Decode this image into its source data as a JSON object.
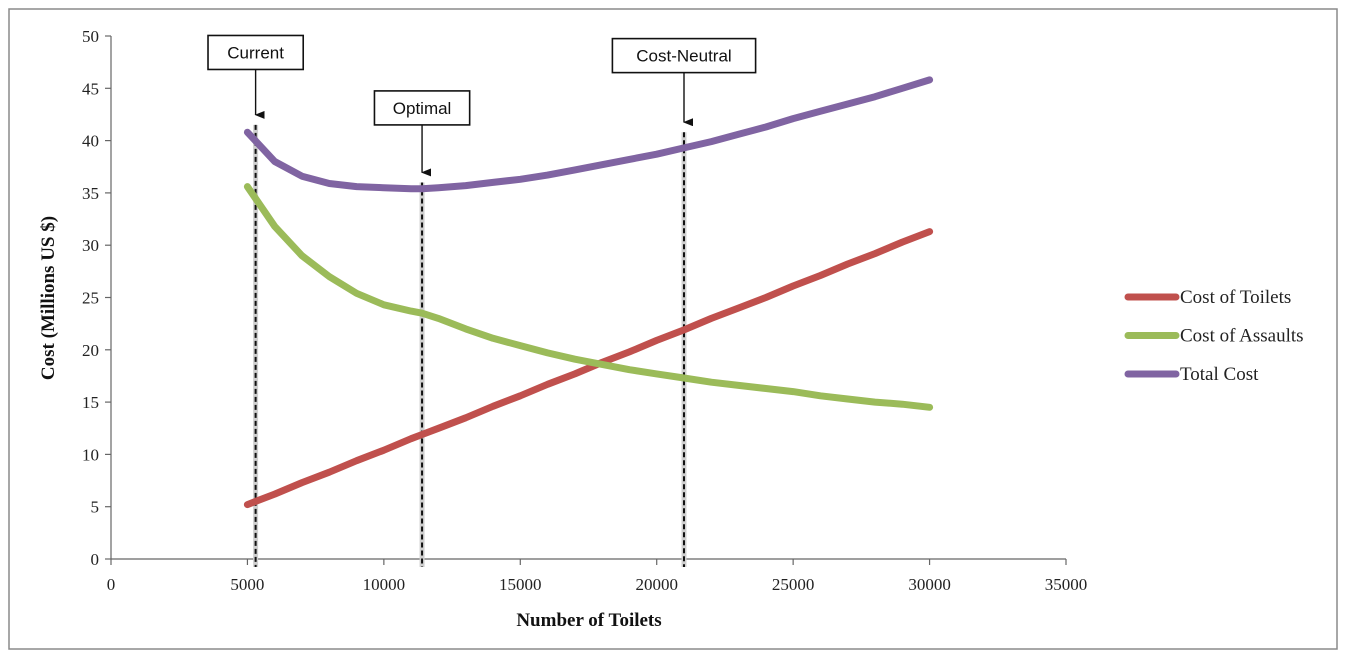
{
  "chart_data": {
    "type": "line",
    "xlabel": "Number of Toilets",
    "ylabel": "Cost (Millions US $)",
    "xlim": [
      0,
      35000
    ],
    "ylim": [
      0,
      50
    ],
    "x_ticks": [
      0,
      5000,
      10000,
      15000,
      20000,
      25000,
      30000,
      35000
    ],
    "y_ticks": [
      0,
      5,
      10,
      15,
      20,
      25,
      30,
      35,
      40,
      45,
      50
    ],
    "grid": false,
    "legend_position": "right",
    "x": [
      5000,
      6000,
      7000,
      8000,
      9000,
      10000,
      11000,
      11400,
      12000,
      13000,
      14000,
      15000,
      16000,
      17000,
      18000,
      19000,
      20000,
      21000,
      22000,
      23000,
      24000,
      25000,
      26000,
      27000,
      28000,
      29000,
      30000
    ],
    "series": [
      {
        "name": "Cost of Toilets",
        "color": "#c0504d",
        "values": [
          5.2,
          6.2,
          7.3,
          8.3,
          9.4,
          10.4,
          11.5,
          11.9,
          12.5,
          13.5,
          14.6,
          15.6,
          16.7,
          17.7,
          18.8,
          19.8,
          20.9,
          21.9,
          23.0,
          24.0,
          25.0,
          26.1,
          27.1,
          28.2,
          29.2,
          30.3,
          31.3
        ]
      },
      {
        "name": "Cost of Assaults",
        "color": "#9bbb59",
        "values": [
          35.6,
          31.8,
          29.0,
          27.0,
          25.4,
          24.3,
          23.7,
          23.5,
          23.0,
          22.0,
          21.1,
          20.4,
          19.7,
          19.1,
          18.6,
          18.1,
          17.7,
          17.3,
          16.9,
          16.6,
          16.3,
          16.0,
          15.6,
          15.3,
          15.0,
          14.8,
          14.5
        ]
      },
      {
        "name": "Total Cost",
        "color": "#8064a2",
        "values": [
          40.8,
          38.0,
          36.6,
          35.9,
          35.6,
          35.5,
          35.4,
          35.4,
          35.5,
          35.7,
          36.0,
          36.3,
          36.7,
          37.2,
          37.7,
          38.2,
          38.7,
          39.3,
          39.9,
          40.6,
          41.3,
          42.1,
          42.8,
          43.5,
          44.2,
          45.0,
          45.8
        ]
      }
    ],
    "annotations": [
      {
        "label": "Current",
        "x": 5300,
        "arrow_y": 41.5,
        "box_y": 46.8
      },
      {
        "label": "Optimal",
        "x": 11400,
        "arrow_y": 36.0,
        "box_y": 41.5
      },
      {
        "label": "Cost-Neutral",
        "x": 21000,
        "arrow_y": 40.8,
        "box_y": 46.5
      }
    ]
  }
}
